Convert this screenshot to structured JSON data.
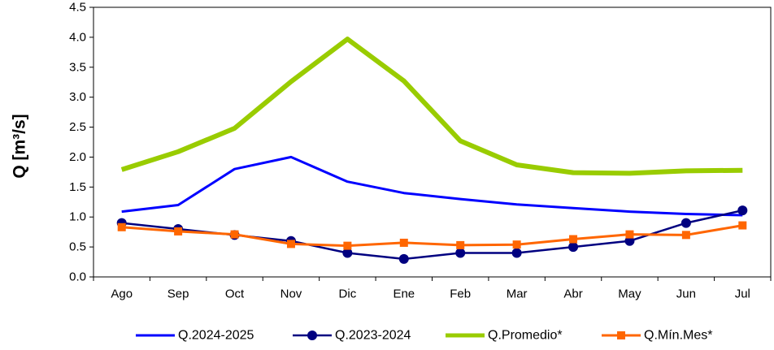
{
  "chart_data": {
    "type": "line",
    "ylabel": "Q [m³/s]",
    "ylim": [
      0,
      4.5
    ],
    "ytick_step": 0.5,
    "grid": "none",
    "legend_position": "bottom",
    "categories": [
      "Ago",
      "Sep",
      "Oct",
      "Nov",
      "Dic",
      "Ene",
      "Feb",
      "Mar",
      "Abr",
      "May",
      "Jun",
      "Jul"
    ],
    "series": [
      {
        "name": "Q.2024-2025",
        "color": "#0000ff",
        "marker": "none",
        "values": [
          1.09,
          1.2,
          1.8,
          2.0,
          1.59,
          1.4,
          1.3,
          1.21,
          1.15,
          1.09,
          1.05,
          1.03
        ]
      },
      {
        "name": "Q.2023-2024",
        "color": "#000080",
        "marker": "circle",
        "values": [
          0.9,
          0.8,
          0.7,
          0.6,
          0.4,
          0.3,
          0.4,
          0.4,
          0.5,
          0.6,
          0.9,
          1.11
        ]
      },
      {
        "name": "Q.Promedio*",
        "color": "#99cc00",
        "marker": "none",
        "values": [
          1.79,
          2.09,
          2.48,
          3.26,
          3.97,
          3.27,
          2.27,
          1.87,
          1.74,
          1.73,
          1.77,
          1.78
        ]
      },
      {
        "name": "Q.Mín.Mes*",
        "color": "#ff6600",
        "marker": "square",
        "values": [
          0.83,
          0.76,
          0.71,
          0.55,
          0.52,
          0.57,
          0.53,
          0.54,
          0.63,
          0.71,
          0.7,
          0.86
        ]
      }
    ]
  }
}
